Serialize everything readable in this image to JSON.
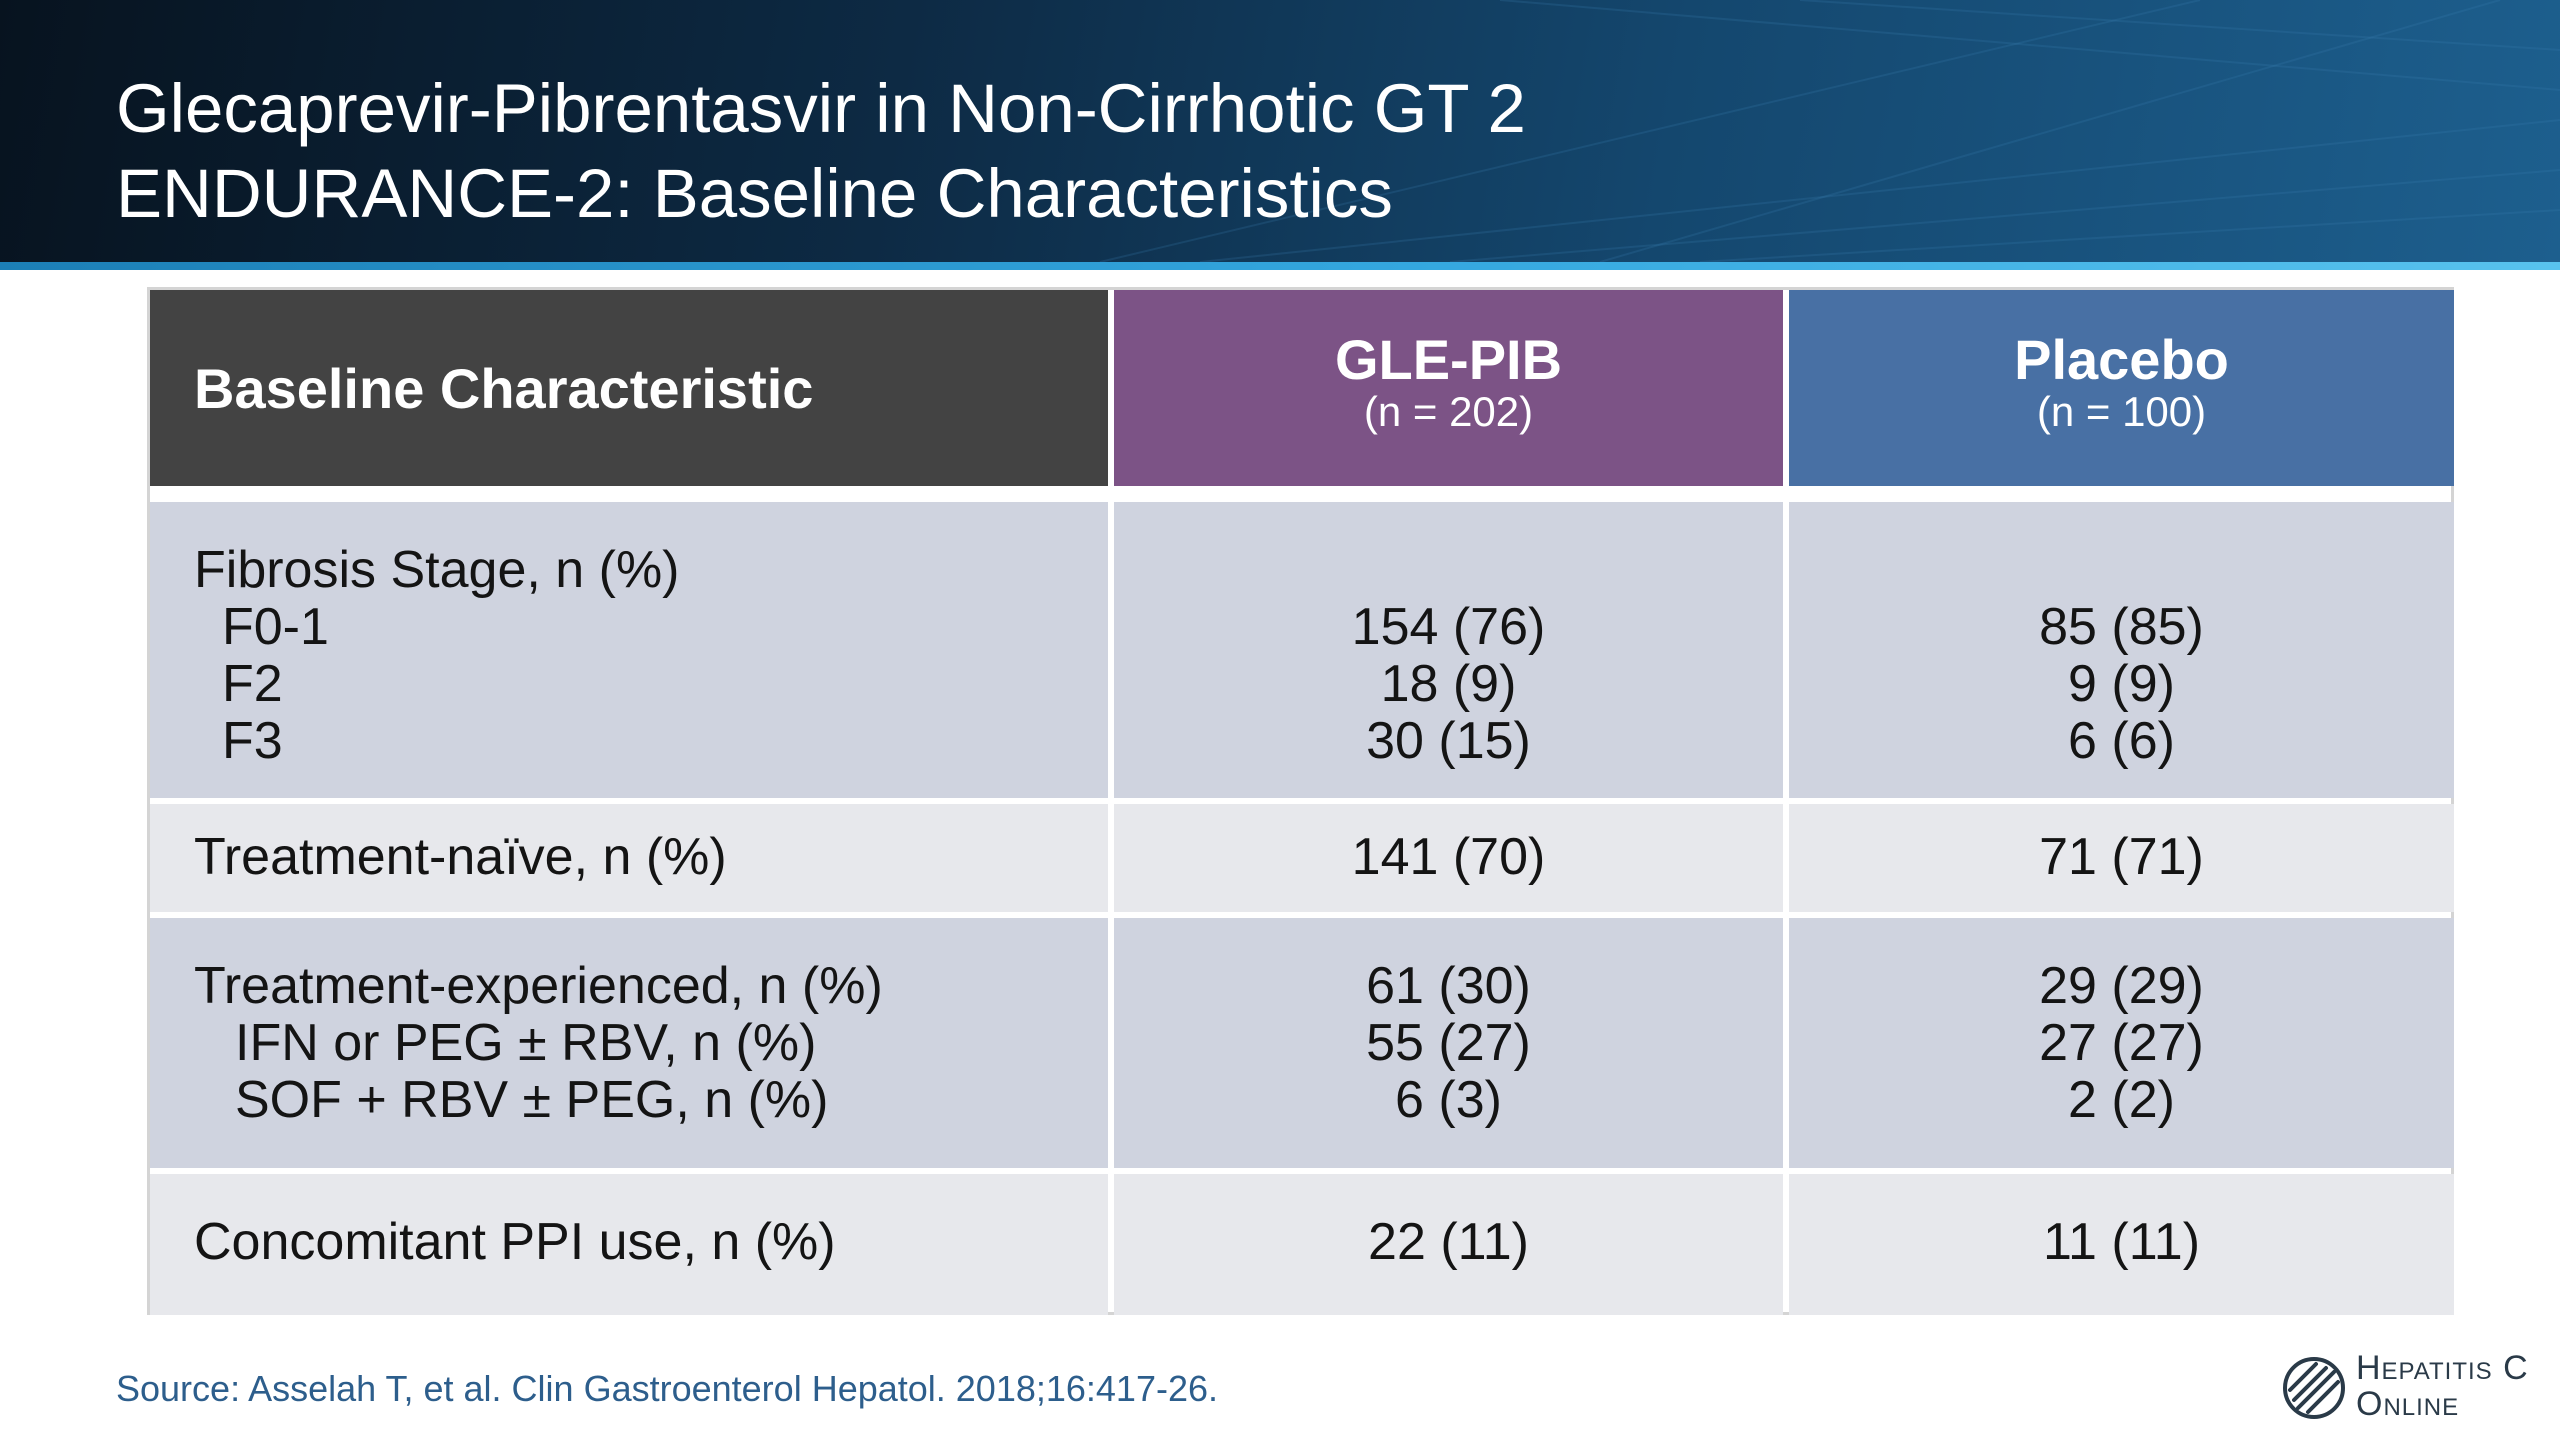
{
  "slide": {
    "title_line1": "Glecaprevir-Pibrentasvir in Non-Cirrhotic GT 2",
    "title_line2": "ENDURANCE-2: Baseline Characteristics"
  },
  "table": {
    "header": {
      "characteristic": "Baseline Characteristic",
      "gle_pib": "GLE-PIB",
      "gle_pib_n": "(n = 202)",
      "placebo": "Placebo",
      "placebo_n": "(n = 100)"
    },
    "rows": [
      {
        "label_lines": [
          "Fibrosis Stage, n (%)",
          "F0-1",
          "F2",
          "F3"
        ],
        "gle_pib_lines": [
          "154 (76)",
          "18 (9)",
          "30 (15)"
        ],
        "placebo_lines": [
          "85 (85)",
          "9 (9)",
          "6 (6)"
        ]
      },
      {
        "label_lines": [
          "Treatment-naïve, n (%)"
        ],
        "gle_pib_lines": [
          "141 (70)"
        ],
        "placebo_lines": [
          "71 (71)"
        ]
      },
      {
        "label_lines": [
          "Treatment-experienced, n (%)",
          "IFN or PEG ± RBV, n (%)",
          "SOF + RBV ± PEG, n (%)"
        ],
        "gle_pib_lines": [
          "61 (30)",
          "55 (27)",
          "6 (3)"
        ],
        "placebo_lines": [
          "29 (29)",
          "27 (27)",
          "2 (2)"
        ]
      },
      {
        "label_lines": [
          "Concomitant PPI use, n (%)"
        ],
        "gle_pib_lines": [
          "22 (11)"
        ],
        "placebo_lines": [
          "11 (11)"
        ]
      }
    ]
  },
  "footer": {
    "source": "Source: Asselah T, et al. Clin Gastroenterol Hepatol. 2018;16:417-26.",
    "logo_line1": "Hepatitis C",
    "logo_line2": "Online"
  },
  "colors": {
    "header_dark": "#434343",
    "gle_pib_purple": "#7c5386",
    "placebo_blue": "#4870a4",
    "row_dark": "#cfd3df",
    "row_light": "#e7e8ec",
    "source_text": "#2d5e8c"
  },
  "icons": {
    "logo_mark": "hepatitis-c-online-logo-icon"
  }
}
